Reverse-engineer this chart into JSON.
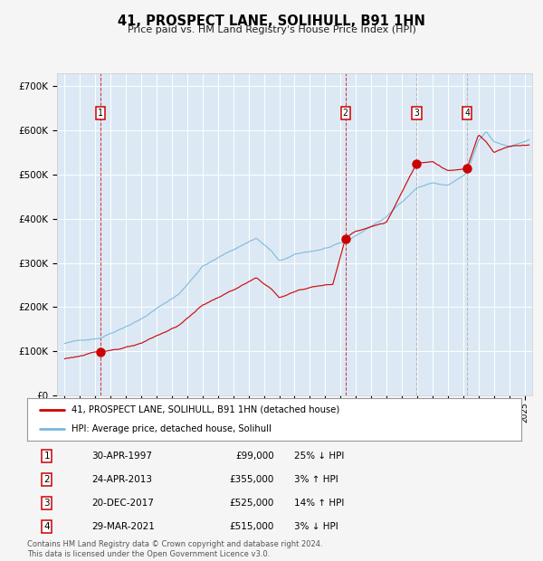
{
  "title": "41, PROSPECT LANE, SOLIHULL, B91 1HN",
  "subtitle": "Price paid vs. HM Land Registry's House Price Index (HPI)",
  "xlim": [
    1994.5,
    2025.5
  ],
  "ylim": [
    0,
    730000
  ],
  "yticks": [
    0,
    100000,
    200000,
    300000,
    400000,
    500000,
    600000,
    700000
  ],
  "ytick_labels": [
    "£0",
    "£100K",
    "£200K",
    "£300K",
    "£400K",
    "£500K",
    "£600K",
    "£700K"
  ],
  "background_color": "#dce9f5",
  "figure_color": "#f5f5f5",
  "grid_color": "#ffffff",
  "hpi_line_color": "#7ab8d9",
  "price_line_color": "#cc0000",
  "sale_marker_color": "#cc0000",
  "legend_label_price": "41, PROSPECT LANE, SOLIHULL, B91 1HN (detached house)",
  "legend_label_hpi": "HPI: Average price, detached house, Solihull",
  "sales": [
    {
      "num": 1,
      "year": 1997.33,
      "price": 99000,
      "vline_color": "#cc0000"
    },
    {
      "num": 2,
      "year": 2013.32,
      "price": 355000,
      "vline_color": "#cc0000"
    },
    {
      "num": 3,
      "year": 2017.97,
      "price": 525000,
      "vline_color": "#aaaaaa"
    },
    {
      "num": 4,
      "year": 2021.25,
      "price": 515000,
      "vline_color": "#aaaaaa"
    }
  ],
  "table_data": [
    {
      "num": "1",
      "date": "30-APR-1997",
      "price": "£99,000",
      "hpi": "25% ↓ HPI"
    },
    {
      "num": "2",
      "date": "24-APR-2013",
      "price": "£355,000",
      "hpi": "3% ↑ HPI"
    },
    {
      "num": "3",
      "date": "20-DEC-2017",
      "price": "£525,000",
      "hpi": "14% ↑ HPI"
    },
    {
      "num": "4",
      "date": "29-MAR-2021",
      "price": "£515,000",
      "hpi": "3% ↓ HPI"
    }
  ],
  "footer": "Contains HM Land Registry data © Crown copyright and database right 2024.\nThis data is licensed under the Open Government Licence v3.0."
}
